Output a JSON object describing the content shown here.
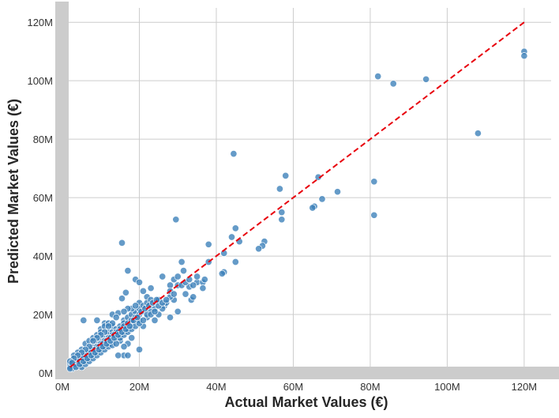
{
  "chart_data": {
    "type": "scatter",
    "title": "",
    "xlabel": "Actual Market Values (€)",
    "ylabel": "Predicted Market Values (€)",
    "xlim": [
      0,
      127
    ],
    "ylim": [
      0,
      126
    ],
    "x_ticks": [
      0,
      20,
      40,
      60,
      80,
      100,
      120
    ],
    "x_tick_labels": [
      "0M",
      "20M",
      "40M",
      "60M",
      "80M",
      "100M",
      "120M"
    ],
    "y_ticks": [
      0,
      20,
      40,
      60,
      80,
      100,
      120
    ],
    "y_tick_labels": [
      "0M",
      "20M",
      "40M",
      "60M",
      "80M",
      "100M",
      "120M"
    ],
    "units": "M €",
    "grid": true,
    "colors": {
      "points": "#3a7fb8",
      "reference_line": "#e8000b",
      "grid": "#cccccc",
      "axis_band": "#cccccc"
    },
    "reference_line": {
      "label": "",
      "from": [
        2,
        2
      ],
      "to": [
        120,
        120
      ],
      "style": "dashed"
    },
    "series": [
      {
        "points": [
          [
            120,
            110
          ],
          [
            120,
            108.5
          ],
          [
            82,
            101.5
          ],
          [
            86,
            99
          ],
          [
            94.5,
            100.5
          ],
          [
            108,
            82
          ],
          [
            44.5,
            75
          ],
          [
            58,
            67.5
          ],
          [
            66.5,
            67
          ],
          [
            56.5,
            63
          ],
          [
            71.5,
            62
          ],
          [
            81,
            65.5
          ],
          [
            81,
            54
          ],
          [
            67.5,
            59.5
          ],
          [
            65.5,
            57
          ],
          [
            65,
            56.5
          ],
          [
            57,
            55
          ],
          [
            57,
            52.5
          ],
          [
            29.5,
            52.5
          ],
          [
            45,
            49.5
          ],
          [
            44,
            46.5
          ],
          [
            46,
            45
          ],
          [
            52.5,
            45
          ],
          [
            52,
            43.5
          ],
          [
            51,
            42.5
          ],
          [
            15.5,
            44.5
          ],
          [
            38,
            44
          ],
          [
            42,
            41
          ],
          [
            45,
            38
          ],
          [
            42,
            34.5
          ],
          [
            41.5,
            34
          ],
          [
            38,
            38
          ],
          [
            17,
            35
          ],
          [
            31,
            38
          ],
          [
            31.5,
            35
          ],
          [
            19,
            32
          ],
          [
            20,
            31
          ],
          [
            29,
            32
          ],
          [
            30,
            33
          ],
          [
            33,
            29.5
          ],
          [
            35,
            31
          ],
          [
            36.5,
            31
          ],
          [
            36.5,
            29
          ],
          [
            33.5,
            25
          ],
          [
            34,
            26
          ],
          [
            37,
            32
          ],
          [
            35,
            33
          ],
          [
            26,
            33
          ],
          [
            28,
            30
          ],
          [
            32,
            27
          ],
          [
            29,
            25
          ],
          [
            30,
            21
          ],
          [
            28,
            19
          ],
          [
            24,
            22
          ],
          [
            22,
            26
          ],
          [
            25,
            25
          ],
          [
            21,
            28
          ],
          [
            20,
            24
          ],
          [
            16.5,
            27.5
          ],
          [
            15.5,
            25.5
          ],
          [
            23,
            29
          ],
          [
            26.5,
            23
          ],
          [
            20,
            8
          ],
          [
            16,
            6
          ],
          [
            17,
            6
          ],
          [
            14.5,
            6
          ],
          [
            13,
            20
          ],
          [
            5.5,
            18
          ],
          [
            14.5,
            20.5
          ],
          [
            9,
            18
          ],
          [
            10,
            15
          ],
          [
            11,
            17
          ],
          [
            12,
            14
          ],
          [
            13,
            16
          ],
          [
            15,
            13
          ],
          [
            16,
            18
          ],
          [
            17,
            15
          ],
          [
            18,
            17
          ],
          [
            19,
            20
          ],
          [
            20,
            18
          ],
          [
            21,
            16
          ],
          [
            22,
            19
          ],
          [
            23,
            21
          ],
          [
            24,
            18
          ],
          [
            25,
            20
          ],
          [
            26,
            22
          ],
          [
            27,
            24
          ],
          [
            28,
            26
          ],
          [
            18,
            12
          ],
          [
            17,
            10
          ],
          [
            16,
            9
          ],
          [
            15,
            11
          ],
          [
            14,
            12
          ],
          [
            13,
            11
          ],
          [
            12,
            10
          ],
          [
            11,
            9
          ],
          [
            10,
            8
          ],
          [
            9,
            7
          ],
          [
            8,
            6
          ],
          [
            7,
            5
          ],
          [
            6,
            4
          ],
          [
            5,
            3
          ],
          [
            4,
            2.5
          ],
          [
            3,
            2
          ],
          [
            2.5,
            1.5
          ],
          [
            2,
            3
          ],
          [
            3,
            4
          ],
          [
            4,
            5
          ],
          [
            5,
            6
          ],
          [
            6,
            7
          ],
          [
            7,
            8
          ],
          [
            8,
            9
          ],
          [
            9,
            10
          ],
          [
            10,
            11
          ],
          [
            11,
            12
          ],
          [
            12,
            13
          ],
          [
            13,
            14
          ],
          [
            14,
            15
          ],
          [
            15,
            16
          ],
          [
            16,
            17
          ],
          [
            17,
            19
          ],
          [
            18,
            20
          ],
          [
            19,
            21
          ],
          [
            20,
            22
          ],
          [
            21,
            23
          ],
          [
            22,
            24
          ],
          [
            23,
            25
          ],
          [
            6,
            10
          ],
          [
            7,
            11
          ],
          [
            8,
            12
          ],
          [
            9,
            13
          ],
          [
            10,
            14
          ],
          [
            11,
            16
          ],
          [
            12,
            17
          ],
          [
            5,
            8
          ],
          [
            4,
            7
          ],
          [
            3,
            6
          ],
          [
            4,
            4
          ],
          [
            5,
            5
          ],
          [
            6,
            6
          ],
          [
            7,
            7
          ],
          [
            8,
            8
          ],
          [
            9,
            9
          ],
          [
            10,
            10
          ],
          [
            11,
            11
          ],
          [
            12,
            12
          ],
          [
            13,
            13
          ],
          [
            14,
            14
          ],
          [
            15,
            15
          ],
          [
            16,
            16
          ],
          [
            17,
            17
          ],
          [
            18,
            18
          ],
          [
            19,
            19
          ],
          [
            20,
            20
          ],
          [
            3,
            3
          ],
          [
            2.5,
            2.5
          ],
          [
            2,
            2
          ],
          [
            3.5,
            3
          ],
          [
            4.5,
            4
          ],
          [
            5.5,
            5
          ],
          [
            6.5,
            6
          ],
          [
            7.5,
            7
          ],
          [
            8.5,
            8
          ],
          [
            9.5,
            9
          ],
          [
            10.5,
            10
          ],
          [
            11.5,
            11
          ],
          [
            12.5,
            12
          ],
          [
            13.5,
            13
          ],
          [
            14.5,
            14
          ],
          [
            5,
            2
          ],
          [
            6,
            3
          ],
          [
            7,
            4
          ],
          [
            8,
            5
          ],
          [
            9,
            6
          ],
          [
            10,
            7
          ],
          [
            11,
            8
          ],
          [
            12,
            9
          ],
          [
            13,
            9.5
          ],
          [
            14,
            10
          ],
          [
            15,
            12
          ],
          [
            16,
            13
          ],
          [
            17,
            14
          ],
          [
            18,
            15
          ],
          [
            19,
            16
          ],
          [
            20,
            17
          ],
          [
            21,
            18
          ],
          [
            22,
            20
          ],
          [
            23,
            20
          ],
          [
            24,
            21
          ],
          [
            25,
            23
          ],
          [
            26,
            24
          ],
          [
            27,
            25
          ],
          [
            28,
            28
          ],
          [
            29,
            27
          ],
          [
            30,
            30
          ],
          [
            31,
            30
          ],
          [
            32,
            31
          ],
          [
            33,
            32
          ],
          [
            34,
            30
          ],
          [
            18,
            22
          ],
          [
            19,
            23
          ],
          [
            17,
            22
          ],
          [
            16,
            21
          ],
          [
            14,
            19
          ],
          [
            13,
            17
          ],
          [
            12,
            16
          ],
          [
            11,
            14
          ],
          [
            10,
            13
          ],
          [
            9,
            12
          ],
          [
            8,
            11
          ],
          [
            7,
            9
          ],
          [
            6,
            8
          ],
          [
            5,
            7
          ],
          [
            4,
            6
          ],
          [
            3,
            5
          ],
          [
            2,
            4
          ],
          [
            2,
            1.5
          ],
          [
            2.5,
            3.5
          ],
          [
            3.5,
            2
          ],
          [
            4.5,
            3
          ],
          [
            5.5,
            4
          ],
          [
            6.5,
            5
          ],
          [
            7.5,
            6
          ],
          [
            8.5,
            7
          ],
          [
            9.5,
            8
          ],
          [
            10.5,
            9
          ],
          [
            11.5,
            10
          ],
          [
            12.5,
            11
          ],
          [
            13.5,
            12
          ],
          [
            14.5,
            13
          ],
          [
            15.5,
            14
          ],
          [
            16.5,
            15
          ],
          [
            17.5,
            16
          ],
          [
            18.5,
            18
          ],
          [
            19.5,
            19
          ],
          [
            20.5,
            21
          ],
          [
            21.5,
            22
          ],
          [
            22.5,
            23
          ],
          [
            23.5,
            24
          ],
          [
            24.5,
            25
          ]
        ]
      }
    ]
  }
}
